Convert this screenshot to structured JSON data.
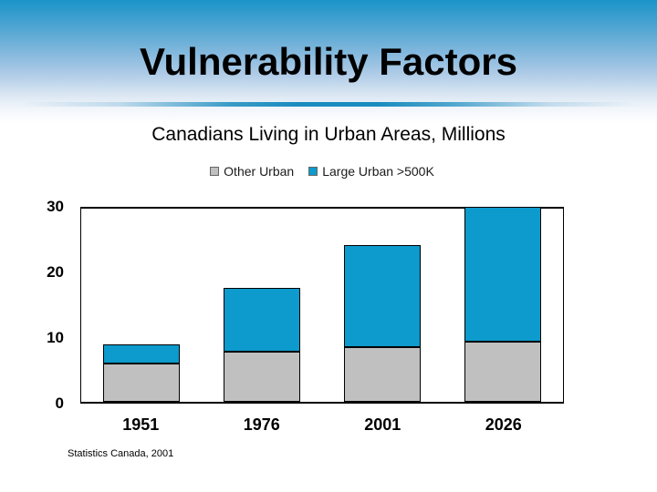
{
  "slide": {
    "title": "Vulnerability Factors",
    "subtitle": "Canadians Living in Urban Areas, Millions",
    "footer": "Statistics Canada, 2001"
  },
  "colors": {
    "header_gradient_top": "#1a94c9",
    "divider_blue": "#1a8cbf",
    "bar_gray": "#c0c0c0",
    "bar_blue": "#0d9acc",
    "axis_line": "#000000"
  },
  "chart_data": {
    "type": "bar",
    "stacked": true,
    "title": "Canadians Living in Urban Areas, Millions",
    "categories": [
      "1951",
      "1976",
      "2001",
      "2026"
    ],
    "series": [
      {
        "name": "Other Urban",
        "color": "#c0c0c0",
        "values": [
          5.9,
          7.7,
          8.4,
          9.2
        ]
      },
      {
        "name": "Large Urban >500K",
        "color": "#0d9acc",
        "values": [
          2.9,
          9.7,
          15.5,
          20.5
        ]
      }
    ],
    "totals": [
      8.8,
      17.4,
      23.9,
      29.7
    ],
    "ylim": [
      0,
      30
    ],
    "yticks": [
      0,
      10,
      20,
      30
    ],
    "grid": false,
    "legend_position": "top",
    "source": "Statistics Canada, 2001"
  }
}
